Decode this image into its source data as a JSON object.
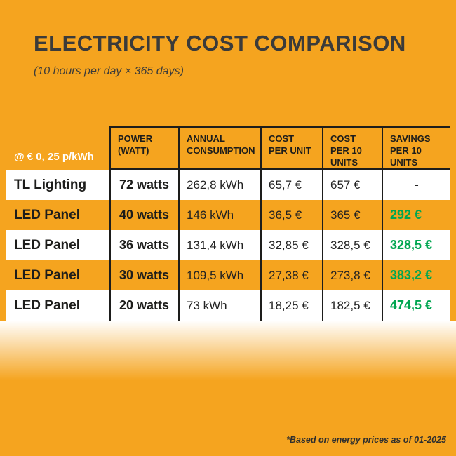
{
  "colors": {
    "background": "#F5A41F",
    "row_white": "#FFFFFF",
    "savings_green": "#00A651",
    "text_dark": "#1D1D1B"
  },
  "chart_data": {
    "type": "table",
    "title": "ELECTRICITY COST COMPARISON",
    "subtitle": "(10 hours per day × 365 days)",
    "rate_label": "@ € 0, 25 p/kWh",
    "columns": [
      "POWER\n(WATT)",
      "ANNUAL\nCONSUMPTION",
      "COST\nPER UNIT",
      "COST\nPER 10\nUNITS",
      "SAVINGS\nPER 10\nUNITS"
    ],
    "rows": [
      {
        "name": "TL Lighting",
        "power": "72 watts",
        "annual_consumption": "262,8 kWh",
        "cost_per_unit": "65,7 €",
        "cost_per_10": "657 €",
        "savings_per_10": "-"
      },
      {
        "name": "LED Panel",
        "power": "40 watts",
        "annual_consumption": "146 kWh",
        "cost_per_unit": "36,5 €",
        "cost_per_10": "365 €",
        "savings_per_10": "292 €"
      },
      {
        "name": "LED Panel",
        "power": "36 watts",
        "annual_consumption": "131,4 kWh",
        "cost_per_unit": "32,85 €",
        "cost_per_10": "328,5 €",
        "savings_per_10": "328,5 €"
      },
      {
        "name": "LED Panel",
        "power": "30 watts",
        "annual_consumption": "109,5 kWh",
        "cost_per_unit": "27,38 €",
        "cost_per_10": "273,8 €",
        "savings_per_10": "383,2 €"
      },
      {
        "name": "LED Panel",
        "power": "20 watts",
        "annual_consumption": "73 kWh",
        "cost_per_unit": "18,25 €",
        "cost_per_10": "182,5 €",
        "savings_per_10": "474,5 €"
      }
    ],
    "footnote": "*Based on energy prices as of 01-2025"
  }
}
